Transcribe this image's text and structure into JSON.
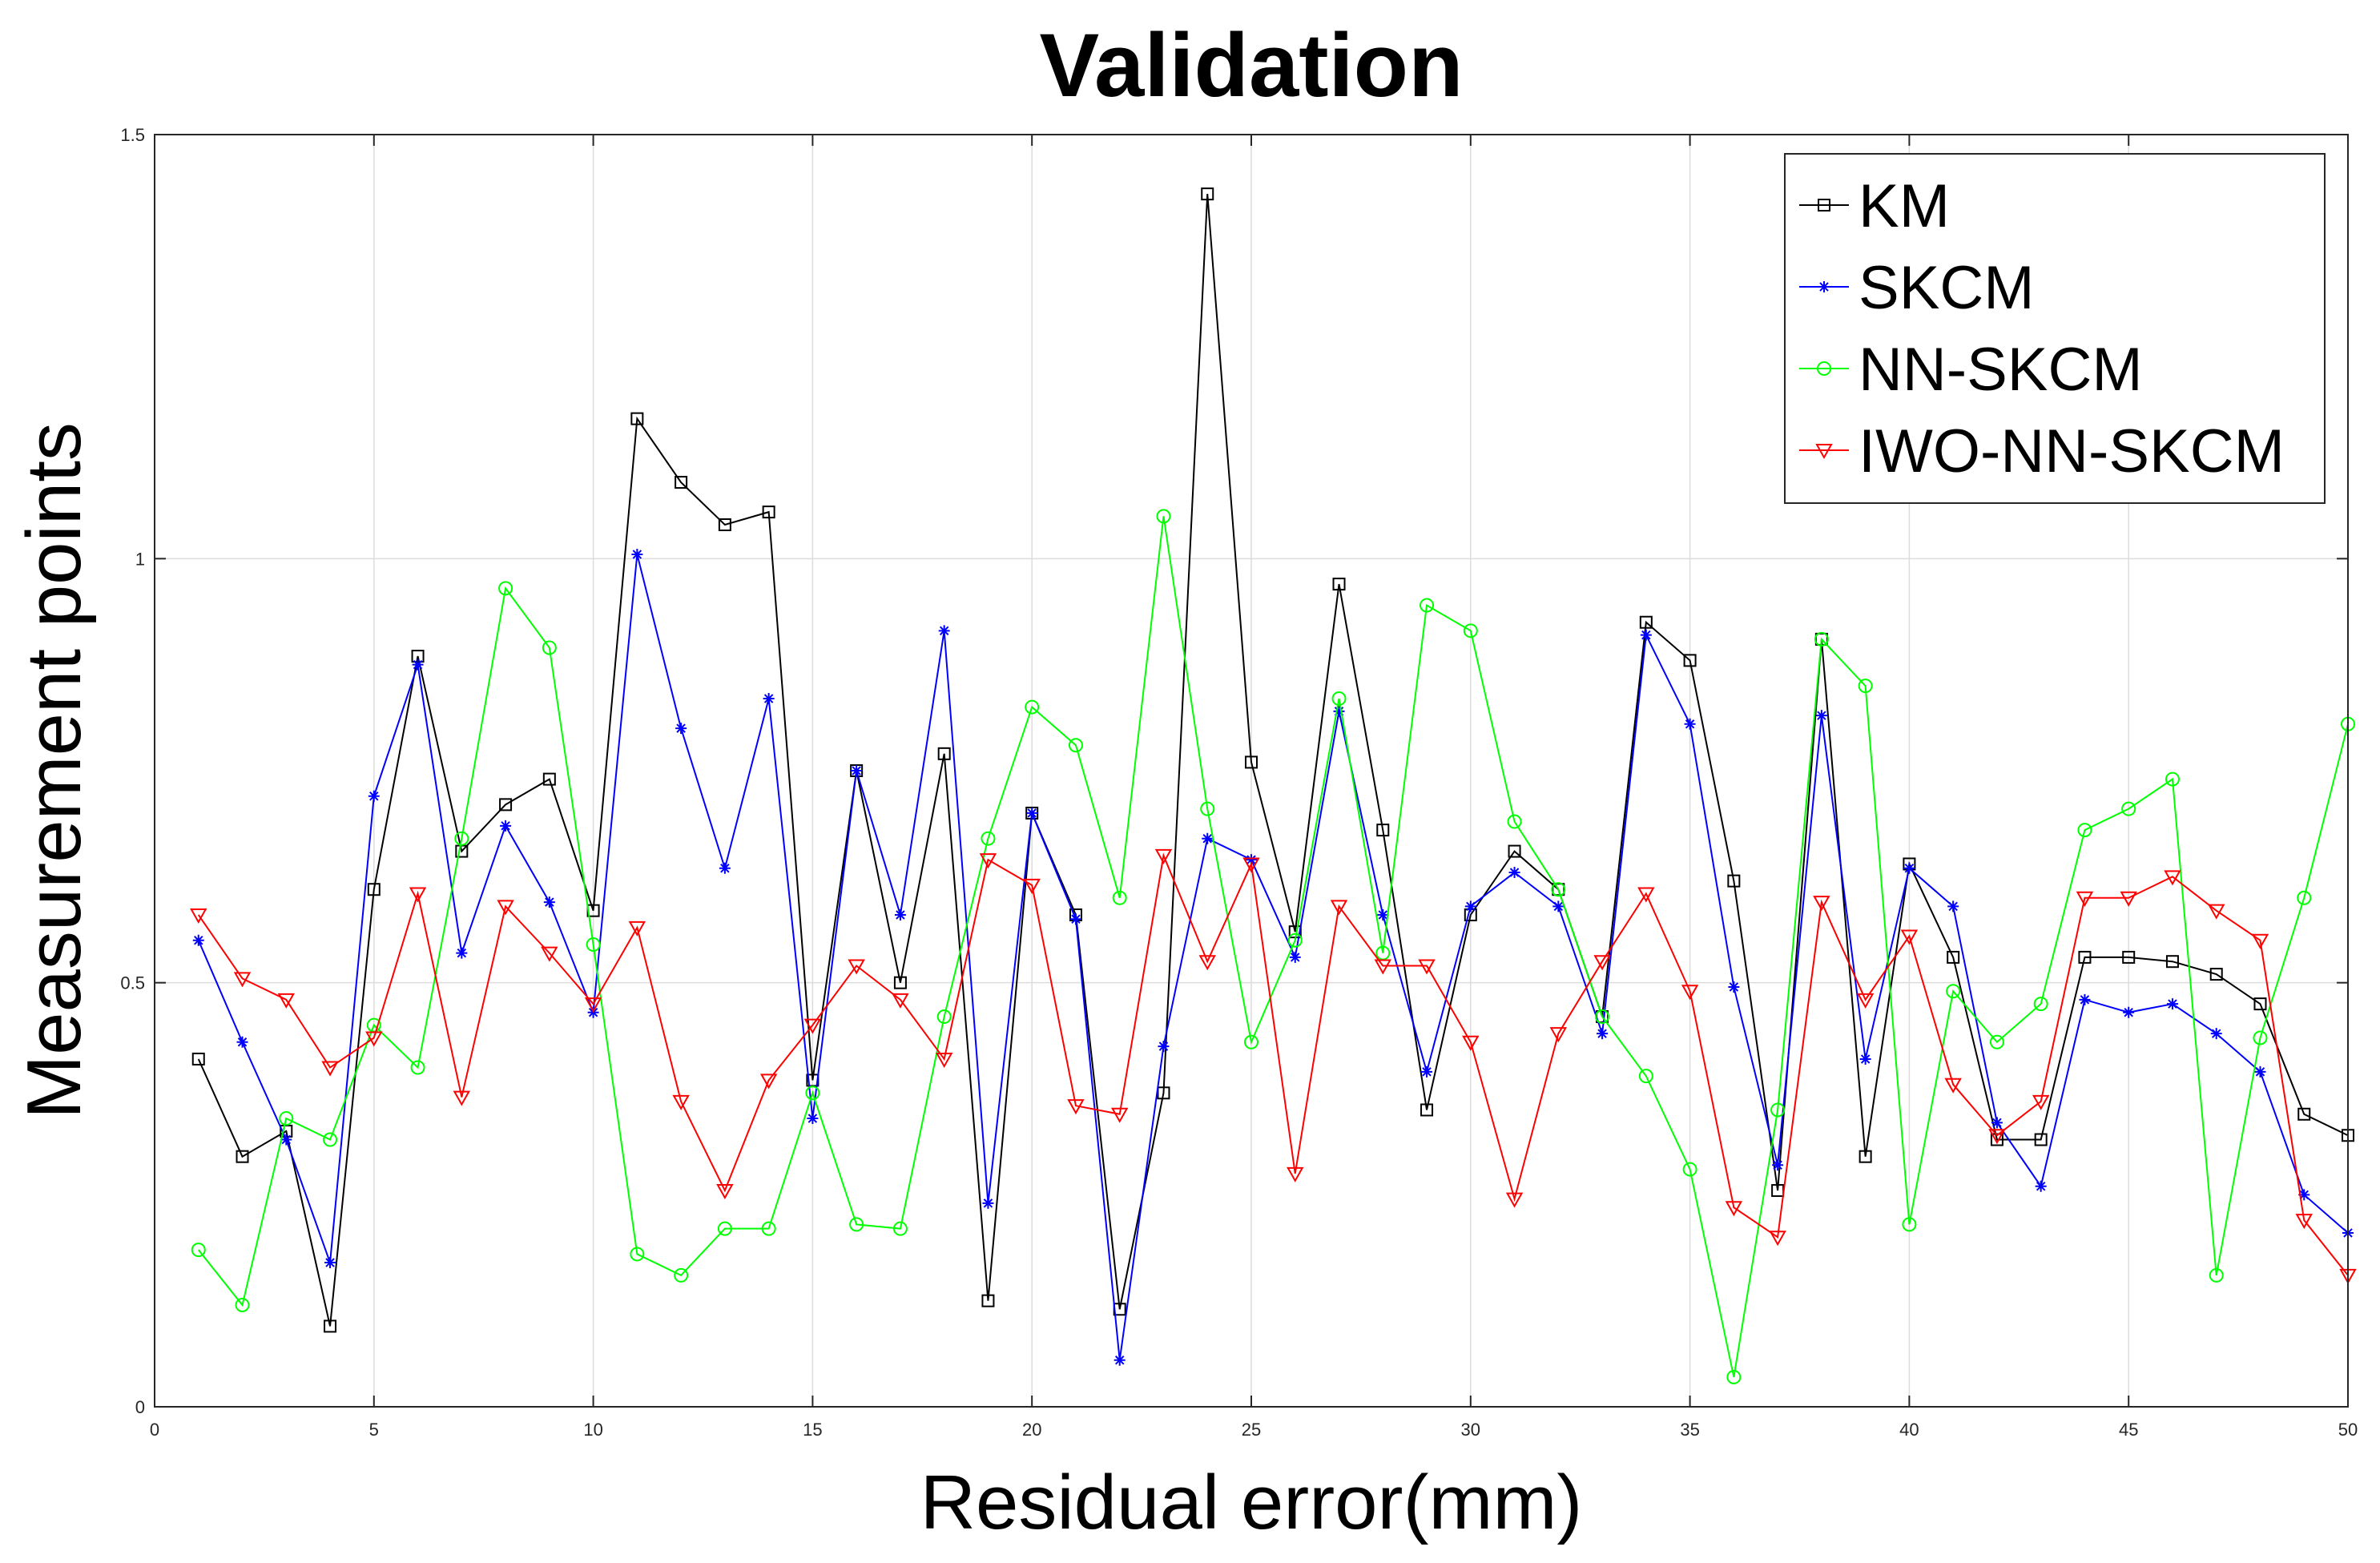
{
  "chart_data": {
    "type": "line",
    "title": "Validation",
    "xlabel": "Residual error(mm)",
    "ylabel": "Measurement points",
    "xlim": [
      0,
      50
    ],
    "ylim": [
      0,
      1.5
    ],
    "xticks": [
      0,
      5,
      10,
      15,
      20,
      25,
      30,
      35,
      40,
      45,
      50
    ],
    "yticks": [
      0,
      0.5,
      1,
      1.5
    ],
    "xtick_labels": [
      "0",
      "5",
      "10",
      "15",
      "20",
      "25",
      "30",
      "35",
      "40",
      "45",
      "50"
    ],
    "ytick_labels": [
      "0",
      "0.5",
      "1",
      "1.5"
    ],
    "grid": true,
    "legend_position": "top-right",
    "x": [
      1,
      2,
      3,
      4,
      5,
      6,
      7,
      8,
      9,
      10,
      11,
      12,
      13,
      14,
      15,
      16,
      17,
      18,
      19,
      20,
      21,
      22,
      23,
      24,
      25,
      26,
      27,
      28,
      29,
      30,
      31,
      32,
      33,
      34,
      35,
      36,
      37,
      38,
      39,
      40,
      41,
      42,
      43,
      44,
      45,
      46,
      47,
      48,
      49,
      50
    ],
    "series": [
      {
        "name": "KM",
        "color": "#000000",
        "marker": "square",
        "values": [
          0.41,
          0.295,
          0.325,
          0.095,
          0.61,
          0.885,
          0.655,
          0.71,
          0.74,
          0.585,
          1.165,
          1.09,
          1.04,
          1.055,
          0.385,
          0.75,
          0.5,
          0.77,
          0.125,
          0.7,
          0.58,
          0.115,
          0.37,
          1.43,
          0.76,
          0.56,
          0.97,
          0.68,
          0.35,
          0.58,
          0.655,
          0.61,
          0.46,
          0.925,
          0.88,
          0.62,
          0.255,
          0.905,
          0.295,
          0.64,
          0.53,
          0.315,
          0.315,
          0.53,
          0.53,
          0.525,
          0.51,
          0.475,
          0.345,
          0.32
        ]
      },
      {
        "name": "SKCM",
        "color": "#0000ff",
        "marker": "asterisk",
        "values": [
          0.55,
          0.43,
          0.315,
          0.17,
          0.72,
          0.875,
          0.535,
          0.685,
          0.595,
          0.465,
          1.005,
          0.8,
          0.635,
          0.835,
          0.34,
          0.75,
          0.58,
          0.915,
          0.24,
          0.7,
          0.575,
          0.055,
          0.425,
          0.67,
          0.645,
          0.53,
          0.82,
          0.58,
          0.395,
          0.59,
          0.63,
          0.59,
          0.44,
          0.91,
          0.805,
          0.495,
          0.285,
          0.815,
          0.41,
          0.635,
          0.59,
          0.335,
          0.26,
          0.48,
          0.465,
          0.475,
          0.44,
          0.395,
          0.25,
          0.205
        ]
      },
      {
        "name": "NN-SKCM",
        "color": "#00ff00",
        "marker": "circle",
        "values": [
          0.185,
          0.12,
          0.34,
          0.315,
          0.45,
          0.4,
          0.67,
          0.965,
          0.895,
          0.545,
          0.18,
          0.155,
          0.21,
          0.21,
          0.37,
          0.215,
          0.21,
          0.46,
          0.67,
          0.825,
          0.78,
          0.6,
          1.05,
          0.705,
          0.43,
          0.55,
          0.835,
          0.535,
          0.945,
          0.915,
          0.69,
          0.61,
          0.46,
          0.39,
          0.28,
          0.035,
          0.35,
          0.905,
          0.85,
          0.215,
          0.49,
          0.43,
          0.475,
          0.68,
          0.705,
          0.74,
          0.155,
          0.435,
          0.6,
          0.805
        ]
      },
      {
        "name": "IWO-NN-SKCM",
        "color": "#ff0000",
        "marker": "triangle-down",
        "values": [
          0.58,
          0.505,
          0.48,
          0.4,
          0.435,
          0.605,
          0.365,
          0.59,
          0.535,
          0.475,
          0.565,
          0.36,
          0.255,
          0.385,
          0.45,
          0.52,
          0.48,
          0.41,
          0.645,
          0.615,
          0.355,
          0.345,
          0.65,
          0.525,
          0.64,
          0.275,
          0.59,
          0.52,
          0.52,
          0.43,
          0.245,
          0.44,
          0.525,
          0.605,
          0.49,
          0.235,
          0.2,
          0.595,
          0.48,
          0.555,
          0.38,
          0.32,
          0.36,
          0.6,
          0.6,
          0.625,
          0.585,
          0.55,
          0.22,
          0.155
        ]
      }
    ]
  }
}
